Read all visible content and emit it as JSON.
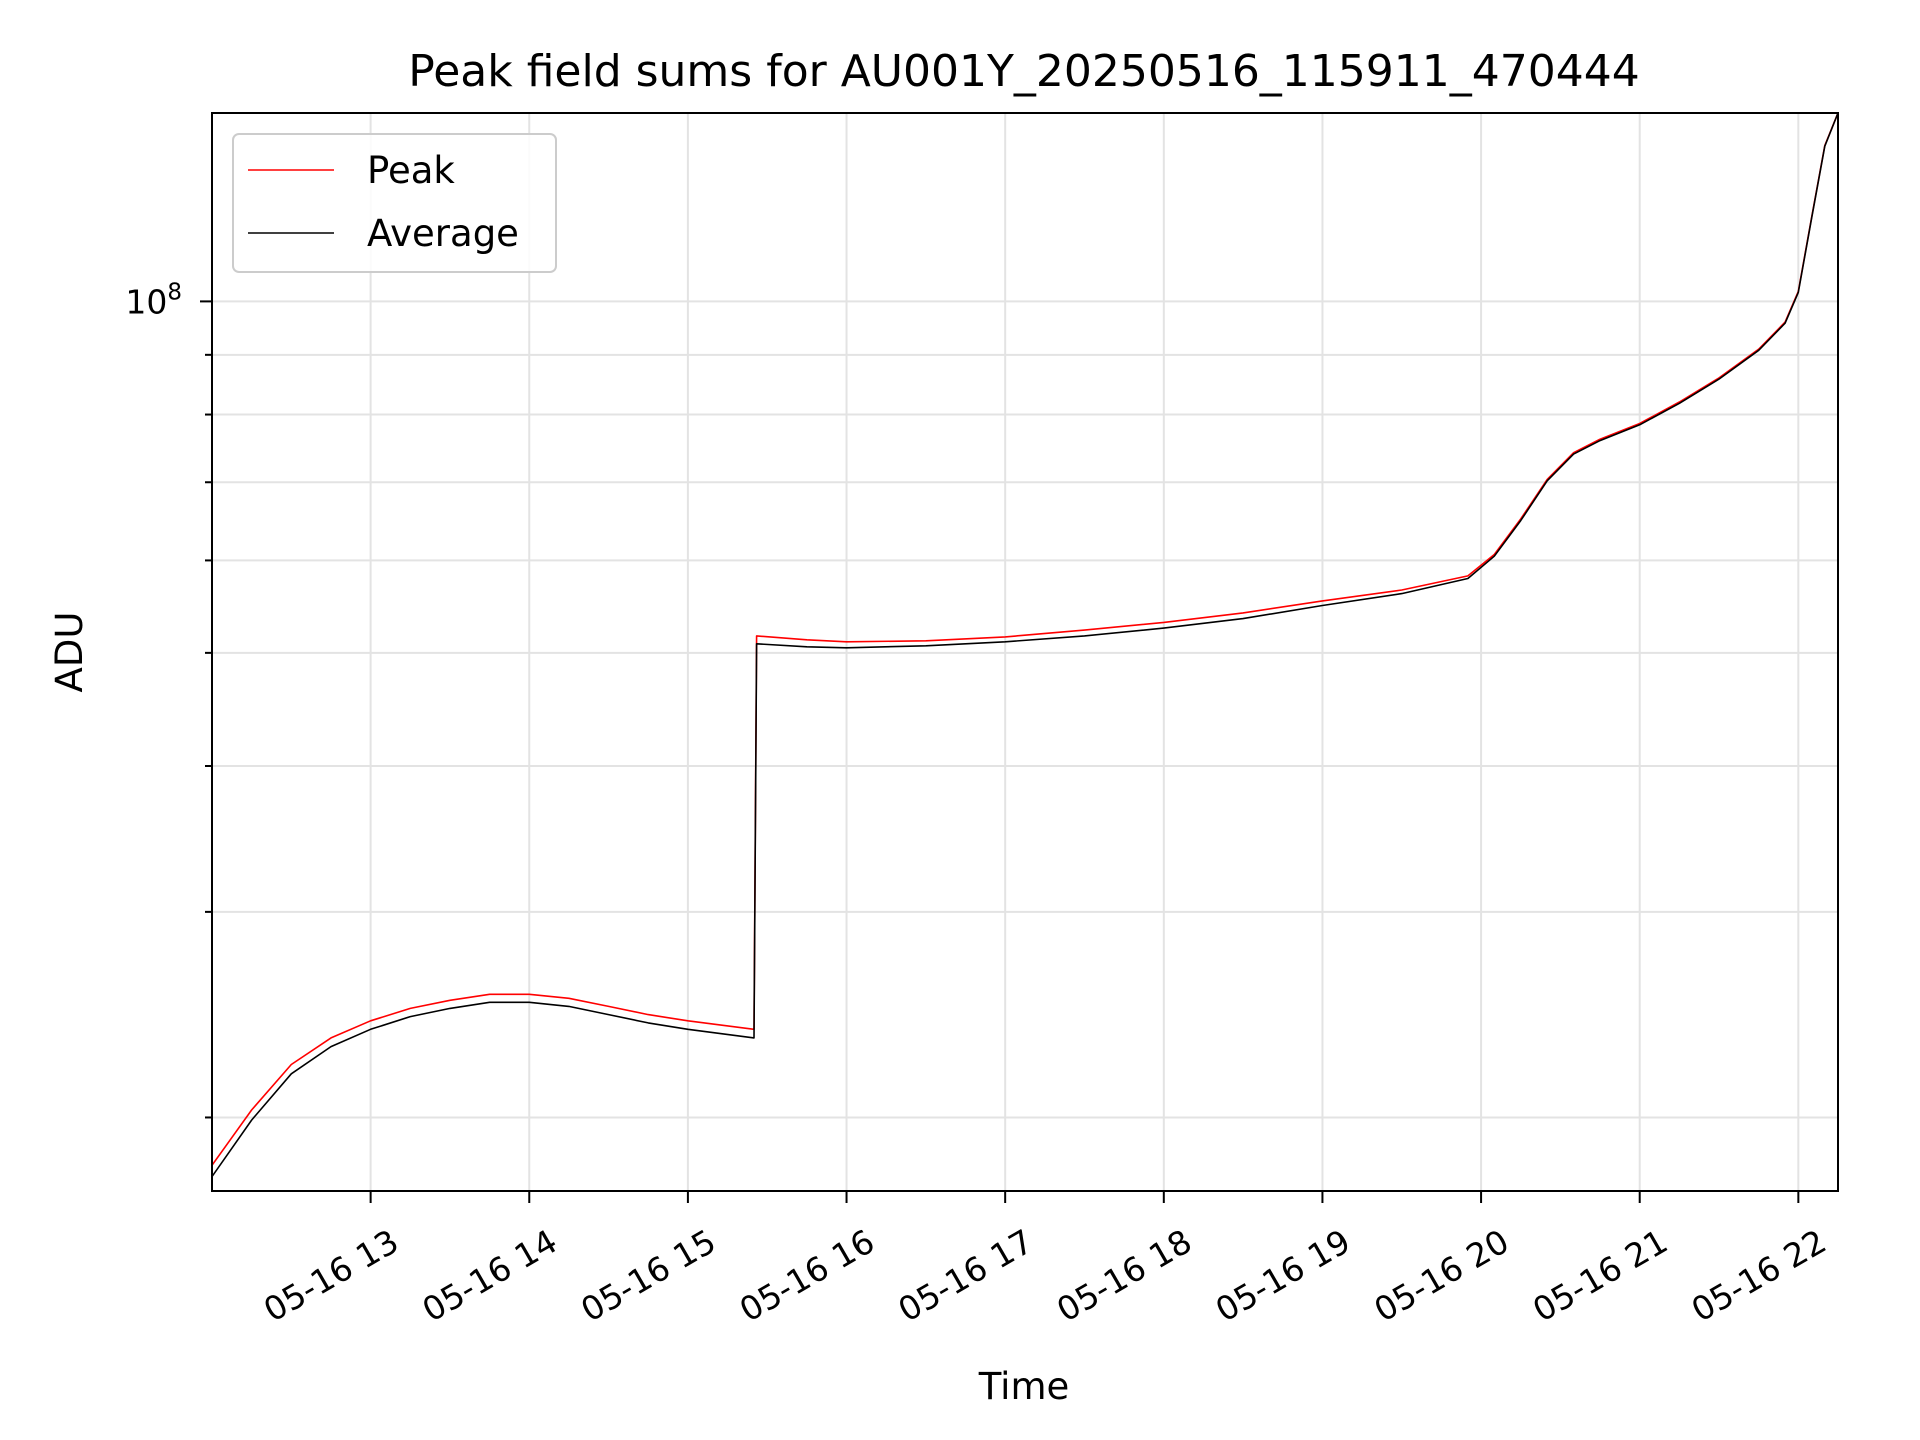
{
  "chart_data": {
    "type": "line",
    "title": "Peak field sums for AU001Y_20250516_115911_470444",
    "xlabel": "Time",
    "ylabel": "ADU",
    "y_scale": "log",
    "ylim": [
      17300000,
      145000000
    ],
    "x_range": [
      "05-16 12:00",
      "05-16 22:15"
    ],
    "x_tick_labels": [
      "05-16 13",
      "05-16 14",
      "05-16 15",
      "05-16 16",
      "05-16 17",
      "05-16 18",
      "05-16 19",
      "05-16 20",
      "05-16 21",
      "05-16 22"
    ],
    "y_tick_label": "10^8",
    "grid": true,
    "legend_position": "top-left",
    "colors": {
      "Peak": "#ff0000",
      "Average": "#000000"
    },
    "series": [
      {
        "name": "Peak",
        "x": [
          "05-16 12:00",
          "05-16 12:15",
          "05-16 12:30",
          "05-16 12:45",
          "05-16 13:00",
          "05-16 13:15",
          "05-16 13:30",
          "05-16 13:45",
          "05-16 14:00",
          "05-16 14:15",
          "05-16 14:30",
          "05-16 14:45",
          "05-16 15:00",
          "05-16 15:25",
          "05-16 15:26",
          "05-16 15:45",
          "05-16 16:00",
          "05-16 16:30",
          "05-16 17:00",
          "05-16 17:30",
          "05-16 18:00",
          "05-16 18:30",
          "05-16 19:00",
          "05-16 19:30",
          "05-16 19:55",
          "05-16 20:05",
          "05-16 20:15",
          "05-16 20:25",
          "05-16 20:35",
          "05-16 20:45",
          "05-16 21:00",
          "05-16 21:15",
          "05-16 21:30",
          "05-16 21:45",
          "05-16 21:55",
          "05-16 22:00",
          "05-16 22:05",
          "05-16 22:10",
          "05-16 22:15"
        ],
        "values": [
          18200000,
          20300000,
          22200000,
          23400000,
          24200000,
          24800000,
          25200000,
          25500000,
          25500000,
          25300000,
          24900000,
          24500000,
          24200000,
          23800000,
          51700000,
          51300000,
          51100000,
          51200000,
          51600000,
          52300000,
          53100000,
          54100000,
          55400000,
          56600000,
          58200000,
          60700000,
          65100000,
          70400000,
          74200000,
          76200000,
          78600000,
          82000000,
          86000000,
          91000000,
          96000000,
          102000000,
          118000000,
          136000000,
          145000000
        ]
      },
      {
        "name": "Average",
        "x": [
          "05-16 12:00",
          "05-16 12:15",
          "05-16 12:30",
          "05-16 12:45",
          "05-16 13:00",
          "05-16 13:15",
          "05-16 13:30",
          "05-16 13:45",
          "05-16 14:00",
          "05-16 14:15",
          "05-16 14:30",
          "05-16 14:45",
          "05-16 15:00",
          "05-16 15:25",
          "05-16 15:26",
          "05-16 15:45",
          "05-16 16:00",
          "05-16 16:30",
          "05-16 17:00",
          "05-16 17:30",
          "05-16 18:00",
          "05-16 18:30",
          "05-16 19:00",
          "05-16 19:30",
          "05-16 19:55",
          "05-16 20:05",
          "05-16 20:15",
          "05-16 20:25",
          "05-16 20:35",
          "05-16 20:45",
          "05-16 21:00",
          "05-16 21:15",
          "05-16 21:30",
          "05-16 21:45",
          "05-16 21:55",
          "05-16 22:00",
          "05-16 22:05",
          "05-16 22:10",
          "05-16 22:15"
        ],
        "values": [
          17800000,
          19900000,
          21800000,
          23000000,
          23800000,
          24400000,
          24800000,
          25100000,
          25100000,
          24900000,
          24500000,
          24100000,
          23800000,
          23400000,
          50900000,
          50600000,
          50500000,
          50700000,
          51100000,
          51700000,
          52500000,
          53500000,
          54900000,
          56200000,
          57900000,
          60500000,
          64900000,
          70200000,
          74000000,
          76000000,
          78400000,
          81800000,
          85800000,
          90800000,
          95800000,
          101800000,
          117800000,
          135800000,
          145000000
        ]
      }
    ]
  }
}
